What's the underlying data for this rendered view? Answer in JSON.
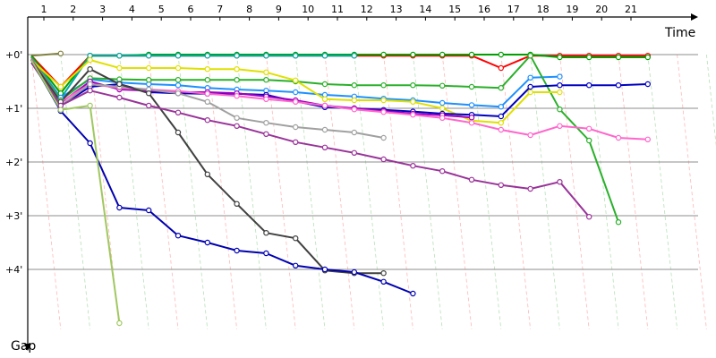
{
  "chart_data": {
    "type": "line",
    "xlabel": "Time",
    "ylabel": "Gap",
    "x_ticks": [
      "1",
      "2",
      "3",
      "4",
      "5",
      "6",
      "7",
      "8",
      "9",
      "10",
      "11",
      "12",
      "13",
      "14",
      "15",
      "16",
      "17",
      "18",
      "19",
      "20",
      "21"
    ],
    "y_ticks": [
      "+0'",
      "+1'",
      "+2'",
      "+3'",
      "+4'"
    ],
    "xlim": [
      1,
      22.4
    ],
    "ylim": [
      -0.45,
      5.25
    ],
    "y_unit": "minutes",
    "grid": {
      "horizontal": true,
      "vertical": false
    },
    "diagonal_guides": {
      "dx": 1,
      "dy": 1.55
    },
    "series": [
      {
        "color": "#808040",
        "values": [
          0.02,
          -0.02
        ]
      },
      {
        "color": "#ff0000",
        "values": [
          0.02,
          0.6,
          0.02,
          0.02,
          0.02,
          0.02,
          0.02,
          0.02,
          0.02,
          0.02,
          0.02,
          0.02,
          0.02,
          0.02,
          0.02,
          0.02,
          0.25,
          0.02,
          0.02,
          0.02,
          0.02,
          0.02
        ]
      },
      {
        "color": "#00a000",
        "values": [
          0.02,
          0.72,
          0.02,
          0.02,
          0.0,
          0.0,
          0.0,
          0.0,
          0.0,
          0.0,
          0.0,
          0.0,
          0.0,
          0.0,
          0.0,
          0.0,
          0.0,
          0.0,
          0.05,
          0.05,
          0.05,
          0.05
        ]
      },
      {
        "color": "#00aaaa",
        "values": [
          0.05,
          0.82,
          0.02,
          0.02,
          0.02,
          0.02,
          0.02,
          0.02,
          0.02,
          0.02,
          0.02,
          0.02
        ]
      },
      {
        "color": "#1e90ff",
        "values": [
          0.05,
          0.8,
          0.46,
          0.52,
          0.55,
          0.57,
          0.62,
          0.65,
          0.67,
          0.7,
          0.75,
          0.78,
          0.82,
          0.85,
          0.9,
          0.94,
          0.97,
          0.43,
          0.41
        ]
      },
      {
        "color": "#2ab02a",
        "values": [
          0.05,
          0.85,
          0.44,
          0.46,
          0.47,
          0.47,
          0.47,
          0.47,
          0.47,
          0.5,
          0.55,
          0.57,
          0.57,
          0.57,
          0.58,
          0.6,
          0.62,
          0.02,
          1.02,
          1.6,
          3.12
        ]
      },
      {
        "color": "#e0e000",
        "values": [
          0.1,
          0.6,
          0.1,
          0.25,
          0.25,
          0.25,
          0.27,
          0.27,
          0.33,
          0.48,
          0.83,
          0.85,
          0.85,
          0.88,
          1.0,
          1.23,
          1.27,
          0.7,
          0.7
        ]
      },
      {
        "color": "#0000c0",
        "values": [
          0.1,
          0.95,
          0.6,
          0.55,
          0.7,
          0.72,
          0.73,
          0.73,
          0.75,
          0.87,
          0.98,
          1.0,
          1.03,
          1.06,
          1.1,
          1.12,
          1.15,
          0.6,
          0.57,
          0.57,
          0.57,
          0.55
        ]
      },
      {
        "color": "#a000c0",
        "values": [
          0.08,
          0.9,
          0.5,
          0.65,
          0.67,
          0.7,
          0.7,
          0.72,
          0.78,
          0.85,
          0.95,
          1.0,
          1.05,
          1.1,
          1.13,
          1.17
        ]
      },
      {
        "color": "#ff66cc",
        "values": [
          0.08,
          0.88,
          0.55,
          0.62,
          0.65,
          0.68,
          0.73,
          0.77,
          0.83,
          0.88,
          0.95,
          1.02,
          1.07,
          1.12,
          1.18,
          1.27,
          1.4,
          1.5,
          1.33,
          1.38,
          1.55,
          1.58
        ]
      },
      {
        "color": "#a0a0a0",
        "values": [
          0.1,
          0.95,
          0.55,
          0.6,
          0.65,
          0.72,
          0.88,
          1.18,
          1.27,
          1.35,
          1.4,
          1.45,
          1.55
        ]
      },
      {
        "color": "#404040",
        "values": [
          0.1,
          0.88,
          0.27,
          0.55,
          0.72,
          1.45,
          2.23,
          2.78,
          3.32,
          3.42,
          4.02,
          4.07,
          4.07
        ]
      },
      {
        "color": "#993399",
        "values": [
          0.15,
          0.95,
          0.67,
          0.8,
          0.95,
          1.08,
          1.22,
          1.33,
          1.48,
          1.63,
          1.73,
          1.83,
          1.95,
          2.07,
          2.17,
          2.33,
          2.43,
          2.5,
          2.37,
          3.02
        ]
      },
      {
        "color": "#0000b0",
        "values": [
          0.1,
          1.05,
          1.65,
          2.85,
          2.9,
          3.37,
          3.5,
          3.65,
          3.7,
          3.93,
          4.0,
          4.05,
          4.23,
          4.45
        ]
      },
      {
        "color": "#a0c860",
        "values": [
          0.1,
          1.03,
          0.95,
          5.0
        ]
      }
    ]
  }
}
